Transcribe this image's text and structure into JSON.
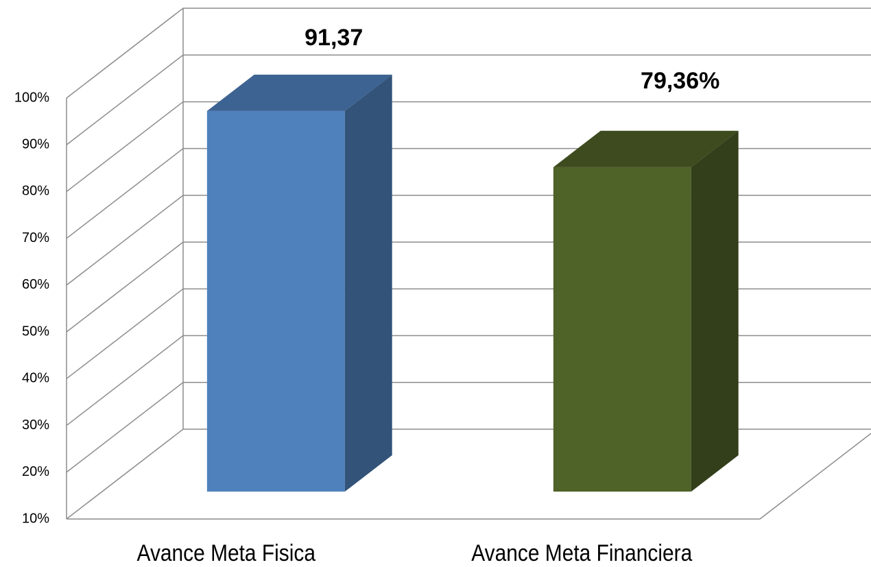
{
  "chart_data": {
    "type": "bar3d",
    "categories": [
      "Avance Meta Fisica",
      "Avance Meta Financiera"
    ],
    "values": [
      91.37,
      79.36
    ],
    "value_labels": [
      "91,37",
      "79,36%"
    ],
    "colors": [
      "#4f81bd",
      "#4f6228"
    ],
    "ylim": [
      10,
      100
    ],
    "yticks": [
      {
        "value": 10,
        "label": "10%"
      },
      {
        "value": 20,
        "label": "20%"
      },
      {
        "value": 30,
        "label": "30%"
      },
      {
        "value": 40,
        "label": "40%"
      },
      {
        "value": 50,
        "label": "50%"
      },
      {
        "value": 60,
        "label": "60%"
      },
      {
        "value": 70,
        "label": "70%"
      },
      {
        "value": 80,
        "label": "80%"
      },
      {
        "value": 90,
        "label": "90%"
      },
      {
        "value": 100,
        "label": "100%"
      }
    ],
    "grid": true
  }
}
